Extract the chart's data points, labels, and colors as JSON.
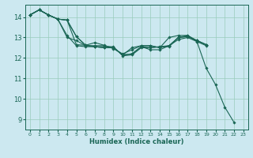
{
  "xlabel": "Humidex (Indice chaleur)",
  "bg_color": "#cce8f0",
  "grid_color": "#99ccbb",
  "line_color": "#1a6655",
  "xlim": [
    -0.5,
    23.5
  ],
  "ylim": [
    8.5,
    14.6
  ],
  "yticks": [
    9,
    10,
    11,
    12,
    13,
    14
  ],
  "xticks": [
    0,
    1,
    2,
    3,
    4,
    5,
    6,
    7,
    8,
    9,
    10,
    11,
    12,
    13,
    14,
    15,
    16,
    17,
    18,
    19,
    20,
    21,
    22,
    23
  ],
  "series": [
    {
      "x": [
        0,
        1,
        2,
        3,
        4,
        5,
        6,
        7,
        8,
        9,
        10,
        11,
        12,
        13,
        14,
        15,
        16,
        17,
        18,
        19,
        20,
        21,
        22
      ],
      "y": [
        14.1,
        14.35,
        14.1,
        13.9,
        13.1,
        12.6,
        12.55,
        12.55,
        12.55,
        12.55,
        12.1,
        12.15,
        12.5,
        12.5,
        12.55,
        12.55,
        13.0,
        13.1,
        12.8,
        11.5,
        10.7,
        9.6,
        8.85
      ]
    },
    {
      "x": [
        0,
        1,
        2,
        3,
        4,
        5,
        6,
        7,
        8,
        9,
        10,
        11,
        12,
        13,
        14,
        15,
        16,
        17,
        18,
        19
      ],
      "y": [
        14.1,
        14.35,
        14.1,
        13.9,
        13.0,
        12.85,
        12.6,
        12.6,
        12.6,
        12.5,
        12.15,
        12.5,
        12.6,
        12.6,
        12.5,
        13.0,
        13.1,
        13.1,
        12.85,
        12.65
      ]
    },
    {
      "x": [
        0,
        1,
        2,
        3,
        4,
        5,
        6,
        7,
        8,
        9,
        10,
        11,
        12,
        13,
        14,
        15,
        16,
        17,
        18,
        19
      ],
      "y": [
        14.1,
        14.35,
        14.1,
        13.9,
        13.85,
        12.65,
        12.62,
        12.75,
        12.62,
        12.45,
        12.2,
        12.4,
        12.6,
        12.6,
        12.5,
        12.6,
        13.0,
        13.05,
        12.85,
        12.65
      ]
    },
    {
      "x": [
        0,
        1,
        2,
        3,
        4,
        5,
        6,
        7,
        8,
        9,
        10,
        11,
        12,
        13,
        14,
        15,
        16,
        17,
        18,
        19
      ],
      "y": [
        14.1,
        14.35,
        14.1,
        13.9,
        13.85,
        13.05,
        12.62,
        12.55,
        12.5,
        12.5,
        12.15,
        12.2,
        12.55,
        12.5,
        12.55,
        12.6,
        13.0,
        13.05,
        12.85,
        12.65
      ]
    },
    {
      "x": [
        0,
        1,
        2,
        3,
        4,
        5,
        6,
        7,
        8,
        9,
        10,
        11,
        12,
        13,
        14,
        15,
        16,
        17,
        18,
        19
      ],
      "y": [
        14.1,
        14.35,
        14.1,
        13.9,
        13.85,
        13.05,
        12.62,
        12.55,
        12.5,
        12.5,
        12.15,
        12.2,
        12.55,
        12.4,
        12.4,
        12.6,
        12.9,
        13.0,
        12.8,
        12.6
      ]
    }
  ]
}
